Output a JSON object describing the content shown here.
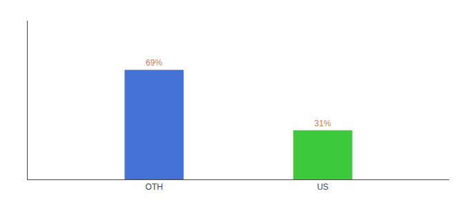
{
  "chart_data": {
    "type": "bar",
    "categories": [
      "OTH",
      "US"
    ],
    "values": [
      69,
      31
    ],
    "value_labels": [
      "69%",
      "31%"
    ],
    "colors": [
      "#4472d4",
      "#3cc93c"
    ],
    "ylim": [
      0,
      100
    ],
    "grid": false,
    "data_labels": true,
    "tick_labels": "x"
  }
}
